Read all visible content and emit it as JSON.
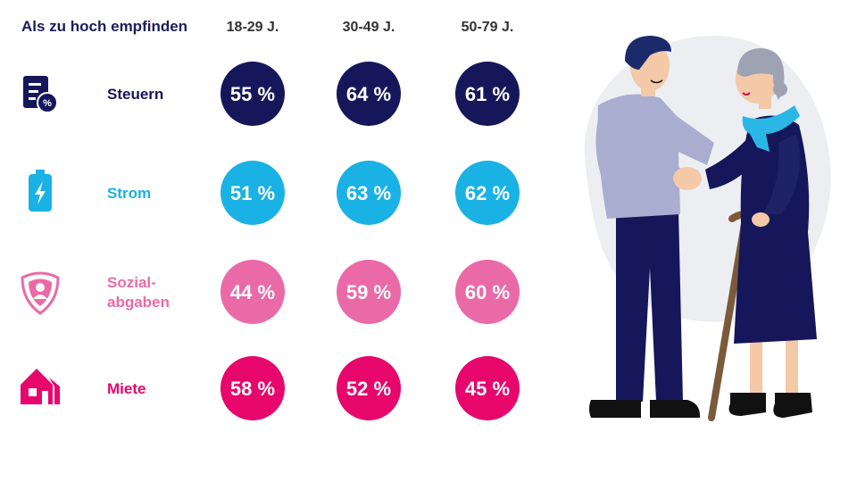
{
  "chart_data": {
    "type": "table",
    "title": "Als zu hoch empfinden",
    "columns": [
      "18-29 J.",
      "30-49 J.",
      "50-79 J."
    ],
    "unit": "%",
    "rows": [
      {
        "label": "Steuern",
        "label_lines": [
          "Steuern"
        ],
        "icon": "tax-document-icon",
        "color": "#15175a",
        "values": [
          "55 %",
          "64 %",
          "61 %"
        ],
        "numbers": [
          55,
          64,
          61
        ]
      },
      {
        "label": "Strom",
        "label_lines": [
          "Strom"
        ],
        "icon": "battery-lightning-icon",
        "color": "#1ab2e4",
        "values": [
          "51 %",
          "63 %",
          "62 %"
        ],
        "numbers": [
          51,
          63,
          62
        ]
      },
      {
        "label": "Sozial-abgaben",
        "label_lines": [
          "Sozial-",
          "abgaben"
        ],
        "icon": "person-shield-icon",
        "color": "#ea6aa7",
        "values": [
          "44 %",
          "59 %",
          "60 %"
        ],
        "numbers": [
          44,
          59,
          60
        ]
      },
      {
        "label": "Miete",
        "label_lines": [
          "Miete"
        ],
        "icon": "house-icon",
        "color": "#e6066c",
        "values": [
          "58 %",
          "52 %",
          "45 %"
        ],
        "numbers": [
          58,
          52,
          45
        ]
      }
    ]
  },
  "illustration": {
    "name": "elderly-couple-illustration",
    "colors": {
      "navy": "#15175a",
      "sweater": "#a9adcf",
      "skin": "#f3c9a8",
      "hair_man": "#1b2a6b",
      "hair_woman": "#9ea3b4",
      "scarf": "#2bb7e6",
      "cane": "#7a5a3a",
      "shoe": "#111111",
      "blob": "#eceef2"
    }
  }
}
